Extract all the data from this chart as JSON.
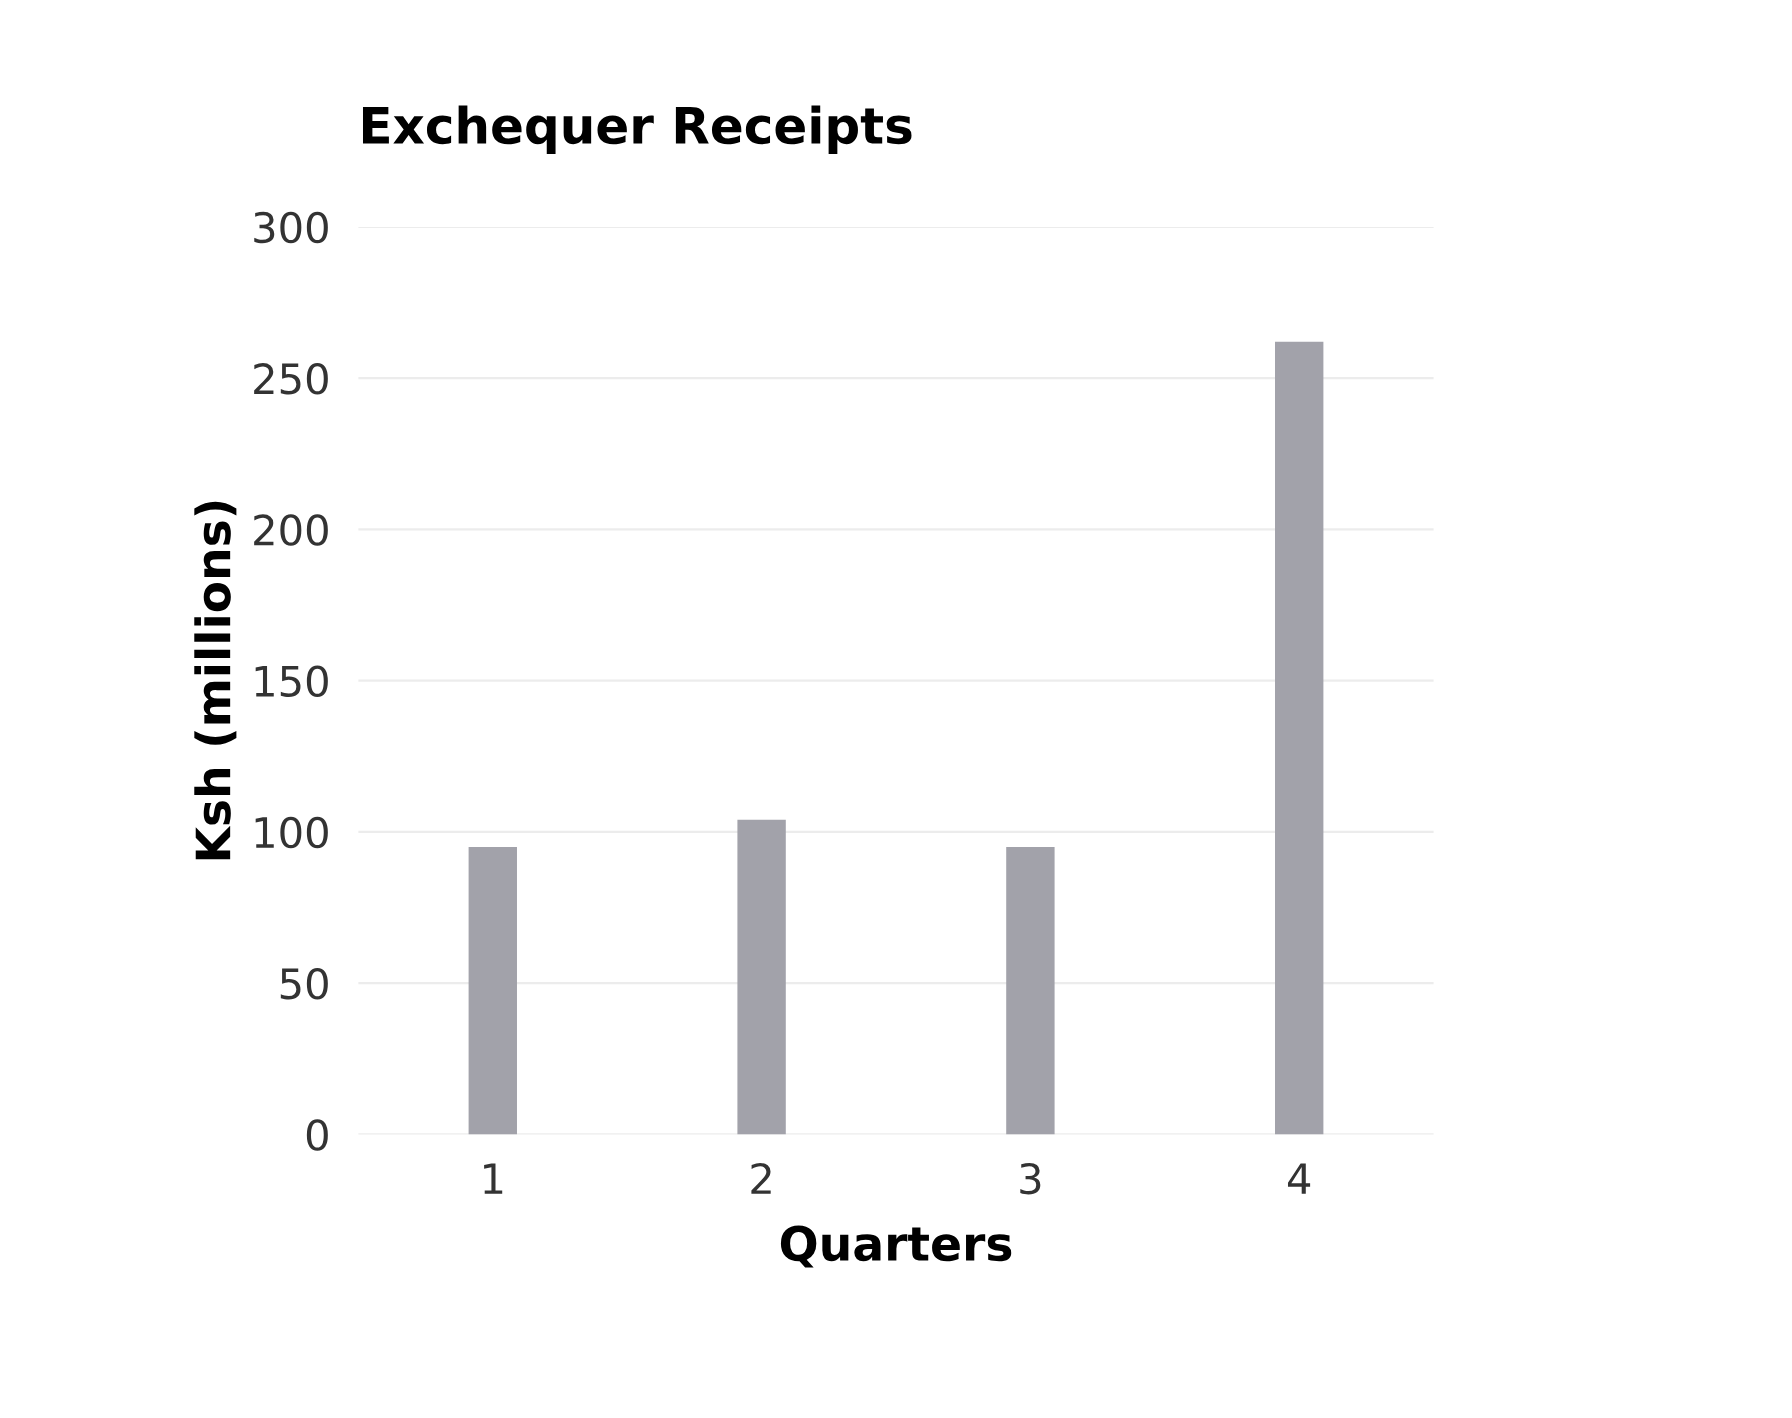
{
  "chart_data": {
    "type": "bar",
    "title": "Exchequer Receipts",
    "xlabel": "Quarters",
    "ylabel": "Ksh (millions)",
    "categories": [
      "1",
      "2",
      "3",
      "4"
    ],
    "values": [
      95,
      104,
      95,
      262
    ],
    "color": "#a2a2aa",
    "ylim": [
      0,
      300
    ],
    "yticks": [
      0,
      50,
      100,
      150,
      200,
      250,
      300
    ],
    "grid": "y"
  }
}
